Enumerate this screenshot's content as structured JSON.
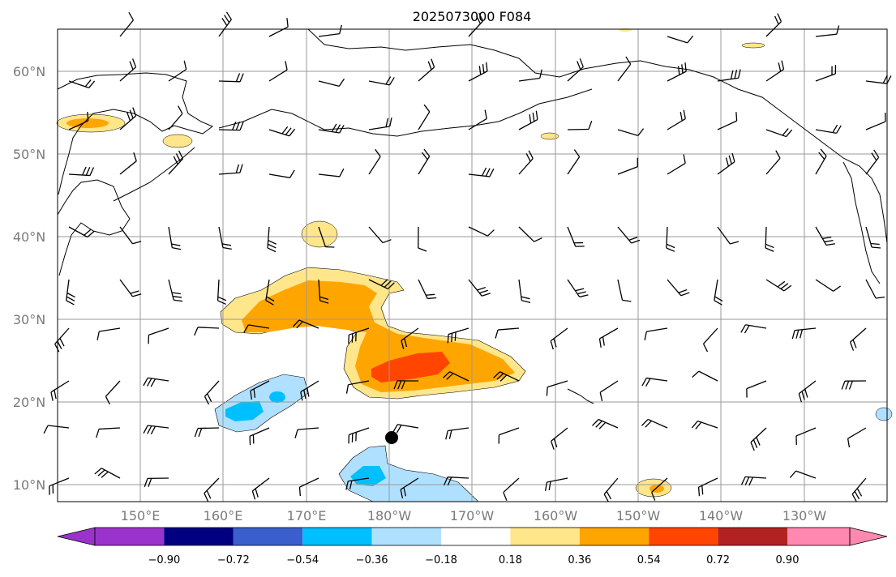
{
  "title": "2025073000 F084",
  "map": {
    "lat_labels": [
      "60°N",
      "50°N",
      "40°N",
      "30°N",
      "20°N",
      "10°N"
    ],
    "lon_labels": [
      "150°E",
      "160°E",
      "170°E",
      "180°W",
      "170°W",
      "160°W",
      "150°W",
      "140°W",
      "130°W"
    ],
    "lat_range": [
      8,
      65
    ],
    "lon_range_east": [
      140,
      240
    ],
    "marker": {
      "name": "storm-center-marker",
      "lat": 15.8,
      "lon_east": 180.2
    }
  },
  "colorbar": {
    "tick_labels": [
      "−0.90",
      "−0.72",
      "−0.54",
      "−0.36",
      "−0.18",
      "0.18",
      "0.36",
      "0.54",
      "0.72",
      "0.90"
    ],
    "colors": [
      "#9933cc",
      "#000080",
      "#3a5fcd",
      "#00bfff",
      "#b0e0ff",
      "#ffffff",
      "#ffe68a",
      "#ffa500",
      "#ff4500",
      "#b22222",
      "#ff88b0"
    ]
  }
}
